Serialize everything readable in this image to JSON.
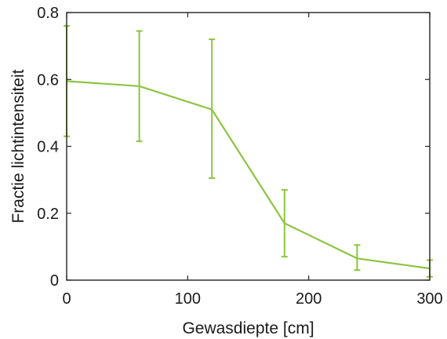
{
  "chart_data": {
    "type": "line",
    "title": "",
    "xlabel": "Gewasdiepte [cm]",
    "ylabel": "Fractie lichtintensiteit",
    "xlim": [
      0,
      300
    ],
    "ylim": [
      0,
      0.8
    ],
    "xticks": [
      0,
      100,
      200,
      300
    ],
    "yticks": [
      0,
      0.2,
      0.4,
      0.6,
      0.8
    ],
    "xtick_labels": [
      "0",
      "100",
      "200",
      "300"
    ],
    "ytick_labels": [
      "0",
      "0.2",
      "0.4",
      "0.6",
      "0.8"
    ],
    "grid": false,
    "legend": "none",
    "series": [
      {
        "color": "#8cc540",
        "x": [
          0,
          60,
          120,
          180,
          240,
          300
        ],
        "y": [
          0.595,
          0.58,
          0.51,
          0.17,
          0.065,
          0.035
        ],
        "error_low": [
          0.43,
          0.415,
          0.305,
          0.07,
          0.03,
          0.01
        ],
        "error_high": [
          0.76,
          0.745,
          0.72,
          0.27,
          0.105,
          0.06
        ]
      }
    ]
  }
}
